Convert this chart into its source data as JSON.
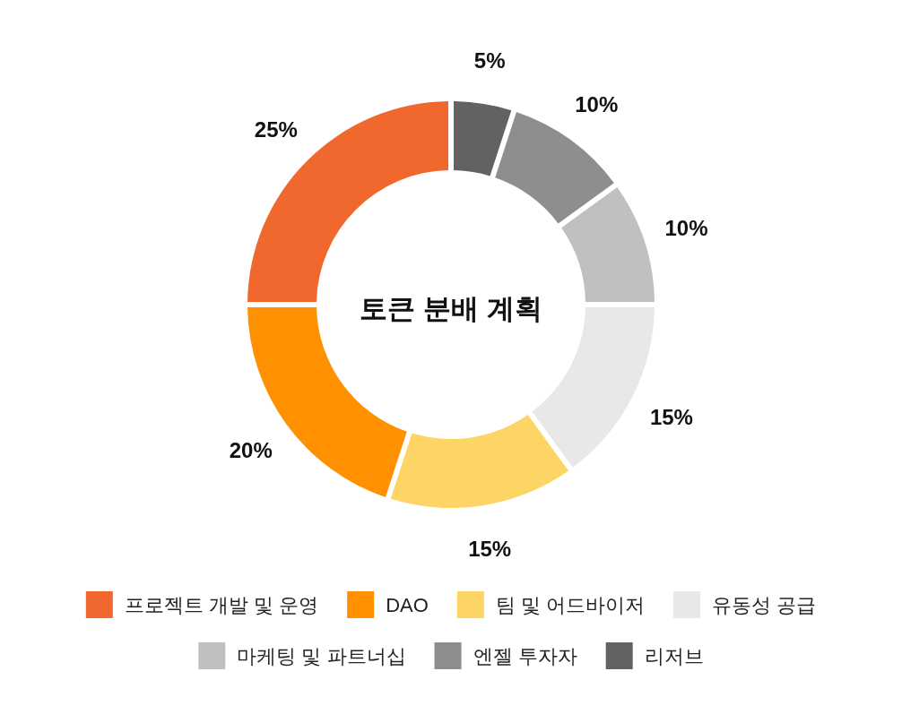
{
  "chart_data": {
    "type": "donut",
    "title": "토큰 분배 계획",
    "categories": [
      "프로젝트 개발 및 운영",
      "DAO",
      "팀 및 어드바이저",
      "유동성 공급",
      "마케팅 및 파트너십",
      "엔젤 투자자",
      "리저브"
    ],
    "values": [
      25,
      20,
      15,
      15,
      10,
      10,
      5
    ],
    "colors": [
      "#f0682d",
      "#ff9000",
      "#fdd566",
      "#e8e8e8",
      "#c0c0c0",
      "#8e8e8e",
      "#626262"
    ],
    "value_labels": [
      "25%",
      "20%",
      "15%",
      "15%",
      "10%",
      "10%",
      "5%"
    ],
    "legend": "bottom"
  }
}
